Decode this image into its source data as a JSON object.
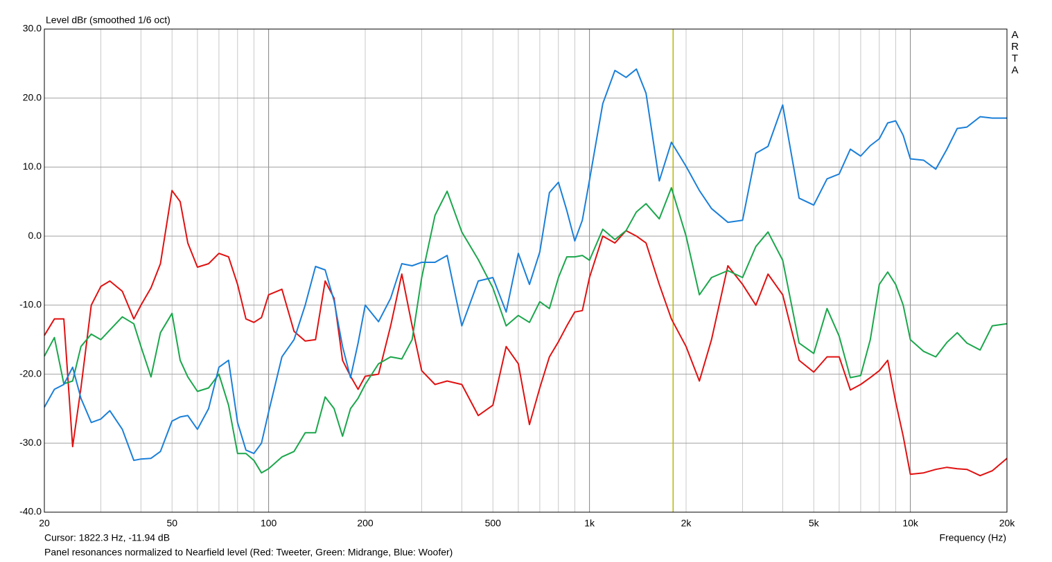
{
  "chart_data": {
    "type": "line",
    "title": "Level dBr (smoothed 1/6 oct)",
    "xlabel": "Frequency (Hz)",
    "caption": "Panel resonances normalized to Nearfield level (Red: Tweeter, Green: Midrange, Blue: Woofer)",
    "watermark": "ARTA",
    "cursor": {
      "x": 1822.3,
      "label": "Cursor: 1822.3 Hz, -11.94 dB",
      "color": "#b8b800"
    },
    "xscale": "log",
    "grid": true,
    "xlim": [
      20,
      20000
    ],
    "ylim": [
      -40,
      30
    ],
    "xticks": [
      20,
      50,
      100,
      200,
      500,
      {
        "value": 1000,
        "label": "1k"
      },
      {
        "value": 2000,
        "label": "2k"
      },
      {
        "value": 5000,
        "label": "5k"
      },
      {
        "value": 10000,
        "label": "10k"
      },
      {
        "value": 20000,
        "label": "20k"
      }
    ],
    "xgrid_minor": [
      30,
      40,
      60,
      70,
      80,
      90,
      300,
      400,
      600,
      700,
      800,
      900,
      3000,
      4000,
      6000,
      7000,
      8000,
      9000
    ],
    "yticks": [
      {
        "value": -40,
        "label": "-40.0"
      },
      {
        "value": -30,
        "label": "-30.0"
      },
      {
        "value": -20,
        "label": "-20.0"
      },
      {
        "value": -10,
        "label": "-10.0"
      },
      {
        "value": 0,
        "label": "0.0"
      },
      {
        "value": 10,
        "label": "10.0"
      },
      {
        "value": 20,
        "label": "20.0"
      },
      {
        "value": 30,
        "label": "30.0"
      }
    ],
    "x": [
      20,
      21.5,
      23,
      24.5,
      26,
      28,
      30,
      32,
      35,
      38,
      40,
      43,
      46,
      50,
      53,
      56,
      60,
      65,
      70,
      75,
      80,
      85,
      90,
      95,
      100,
      110,
      120,
      130,
      140,
      150,
      160,
      170,
      180,
      190,
      200,
      220,
      240,
      260,
      280,
      300,
      330,
      360,
      400,
      450,
      500,
      550,
      600,
      650,
      700,
      750,
      800,
      850,
      900,
      950,
      1000,
      1100,
      1200,
      1300,
      1400,
      1500,
      1650,
      1800,
      2000,
      2200,
      2400,
      2700,
      3000,
      3300,
      3600,
      4000,
      4500,
      5000,
      5500,
      6000,
      6500,
      7000,
      7500,
      8000,
      8500,
      9000,
      9500,
      10000,
      11000,
      12000,
      13000,
      14000,
      15000,
      16500,
      18000,
      20000
    ],
    "series": [
      {
        "color": "#e01010",
        "values": [
          -14.4,
          -12,
          -12,
          -30.5,
          -22,
          -10,
          -7.3,
          -6.5,
          -8,
          -12,
          -10,
          -7.5,
          -4,
          6.6,
          5,
          -1,
          -4.5,
          -4,
          -2.5,
          -3,
          -7,
          -12,
          -12.5,
          -11.8,
          -8.5,
          -7.7,
          -13.8,
          -15.2,
          -15,
          -6.5,
          -9,
          -18,
          -20.3,
          -22.2,
          -20.3,
          -20,
          -13,
          -5.5,
          -13,
          -19.5,
          -21.5,
          -21,
          -21.5,
          -26,
          -24.5,
          -16,
          -18.5,
          -27.3,
          -22,
          -17.5,
          -15.3,
          -13,
          -11,
          -10.8,
          -6,
          0,
          -1,
          0.8,
          0,
          -1,
          -7,
          -12,
          -16,
          -21,
          -15,
          -4.3,
          -7,
          -10,
          -5.5,
          -8.5,
          -18,
          -19.7,
          -17.5,
          -17.5,
          -22.3,
          -21.5,
          -20.5,
          -19.5,
          -18,
          -24,
          -29,
          -34.5,
          -34.3,
          -33.8,
          -33.5,
          -33.7,
          -33.8,
          -34.7,
          -34,
          -32.2
        ]
      },
      {
        "color": "#1aa64b",
        "values": [
          -17.4,
          -14.7,
          -21.4,
          -21,
          -16,
          -14.2,
          -15,
          -13.6,
          -11.7,
          -12.7,
          -16,
          -20.4,
          -14,
          -11.2,
          -18,
          -20.4,
          -22.5,
          -22,
          -20,
          -24.5,
          -31.5,
          -31.5,
          -32.5,
          -34.3,
          -33.7,
          -32,
          -31.2,
          -28.5,
          -28.5,
          -23.3,
          -25,
          -29,
          -25,
          -23.5,
          -21.5,
          -18.5,
          -17.5,
          -17.8,
          -15,
          -6,
          3,
          6.5,
          0.6,
          -3.4,
          -7.5,
          -13,
          -11.5,
          -12.5,
          -9.5,
          -10.5,
          -6,
          -3,
          -3,
          -2.8,
          -3.5,
          1,
          -0.5,
          0.8,
          3.5,
          4.7,
          2.5,
          7,
          0,
          -8.5,
          -6,
          -5,
          -6,
          -1.5,
          0.6,
          -3.5,
          -15.5,
          -17,
          -10.5,
          -14.5,
          -20.5,
          -20.2,
          -15,
          -7,
          -5.2,
          -7,
          -10,
          -15,
          -16.7,
          -17.5,
          -15.4,
          -14,
          -15.5,
          -16.5,
          -13,
          -12.7
        ]
      },
      {
        "color": "#1a7fd8",
        "values": [
          -24.8,
          -22.2,
          -21.5,
          -19,
          -23.5,
          -27,
          -26.5,
          -25.3,
          -28,
          -32.5,
          -32.3,
          -32.2,
          -31.2,
          -26.8,
          -26.2,
          -26,
          -28,
          -25,
          -19,
          -18,
          -27,
          -31,
          -31.5,
          -30,
          -25.5,
          -17.5,
          -15,
          -10,
          -4.4,
          -4.9,
          -9.4,
          -16,
          -20.5,
          -15.5,
          -10,
          -12.4,
          -9,
          -4,
          -4.3,
          -3.8,
          -3.8,
          -2.8,
          -13,
          -6.5,
          -6,
          -11,
          -2.5,
          -7,
          -2.3,
          6.3,
          7.8,
          3.7,
          -0.7,
          2.3,
          8.1,
          19.2,
          24,
          23,
          24.2,
          20.7,
          8,
          13.6,
          10.1,
          6.6,
          4,
          2,
          2.3,
          12,
          13,
          19,
          5.5,
          4.5,
          8.3,
          9,
          12.6,
          11.6,
          13.1,
          14.1,
          16.4,
          16.7,
          14.6,
          11.2,
          11,
          9.7,
          12.6,
          15.6,
          15.8,
          17.3,
          17.1,
          17.1
        ]
      }
    ]
  }
}
